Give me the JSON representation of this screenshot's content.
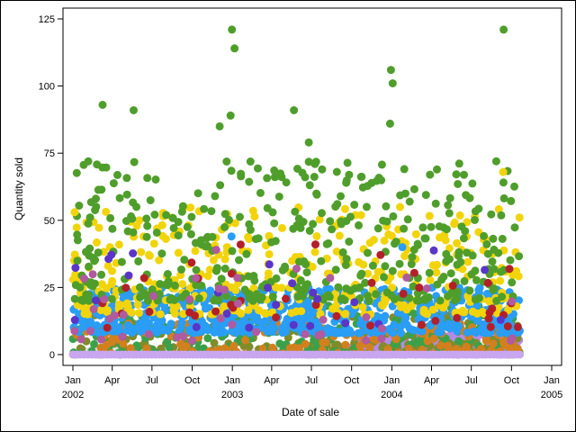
{
  "chart_data": {
    "type": "scatter",
    "title": "",
    "xlabel": "Date of sale",
    "ylabel": "Quantity sold",
    "xlim": [
      "2002-01-01",
      "2005-01-01"
    ],
    "ylim": [
      0,
      125
    ],
    "grid": false,
    "legend": "none",
    "x_ticks": [
      {
        "date": "2002-01-01",
        "label": "Jan",
        "year": "2002"
      },
      {
        "date": "2002-04-01",
        "label": "Apr",
        "year": ""
      },
      {
        "date": "2002-07-01",
        "label": "Jul",
        "year": ""
      },
      {
        "date": "2002-10-01",
        "label": "Oct",
        "year": ""
      },
      {
        "date": "2003-01-01",
        "label": "Jan",
        "year": "2003"
      },
      {
        "date": "2003-04-01",
        "label": "Apr",
        "year": ""
      },
      {
        "date": "2003-07-01",
        "label": "Jul",
        "year": ""
      },
      {
        "date": "2003-10-01",
        "label": "Oct",
        "year": ""
      },
      {
        "date": "2004-01-01",
        "label": "Jan",
        "year": "2004"
      },
      {
        "date": "2004-04-01",
        "label": "Apr",
        "year": ""
      },
      {
        "date": "2004-07-01",
        "label": "Jul",
        "year": ""
      },
      {
        "date": "2004-10-01",
        "label": "Oct",
        "year": ""
      },
      {
        "date": "2005-01-01",
        "label": "Jan",
        "year": "2005"
      }
    ],
    "y_ticks": [
      0,
      25,
      50,
      75,
      100,
      125
    ],
    "series": [
      {
        "color": "#e0e0e0",
        "y_range": [
          0,
          2
        ]
      },
      {
        "color": "#b58ae6",
        "y_range": [
          0,
          8
        ]
      },
      {
        "color": "#808b2a",
        "y_range": [
          0,
          15
        ]
      },
      {
        "color": "#3aa14a",
        "y_range": [
          0,
          20
        ]
      },
      {
        "color": "#d2801e",
        "y_range": [
          0,
          12
        ]
      },
      {
        "color": "#2a9df4",
        "y_range": [
          8,
          25
        ]
      },
      {
        "color": "#f2d40c",
        "y_range": [
          15,
          55
        ]
      },
      {
        "color": "#4f9e2b",
        "y_range": [
          20,
          72
        ]
      },
      {
        "color": "#b3202a",
        "y_range": [
          10,
          42
        ]
      },
      {
        "color": "#5a35c8",
        "y_range": [
          10,
          40
        ]
      },
      {
        "color": "#b05aa0",
        "y_range": [
          5,
          30
        ]
      }
    ],
    "outliers": [
      {
        "x": "2002-03-10",
        "y": 93,
        "color": "#4f9e2b"
      },
      {
        "x": "2002-05-20",
        "y": 91,
        "color": "#4f9e2b"
      },
      {
        "x": "2002-12-31",
        "y": 121,
        "color": "#4f9e2b"
      },
      {
        "x": "2003-01-06",
        "y": 114,
        "color": "#4f9e2b"
      },
      {
        "x": "2002-12-28",
        "y": 89,
        "color": "#4f9e2b"
      },
      {
        "x": "2002-12-03",
        "y": 85,
        "color": "#4f9e2b"
      },
      {
        "x": "2003-05-22",
        "y": 91,
        "color": "#4f9e2b"
      },
      {
        "x": "2003-06-25",
        "y": 79,
        "color": "#4f9e2b"
      },
      {
        "x": "2003-12-30",
        "y": 106,
        "color": "#4f9e2b"
      },
      {
        "x": "2004-01-03",
        "y": 101,
        "color": "#4f9e2b"
      },
      {
        "x": "2003-12-28",
        "y": 86,
        "color": "#4f9e2b"
      },
      {
        "x": "2004-09-13",
        "y": 121,
        "color": "#4f9e2b"
      },
      {
        "x": "2004-08-27",
        "y": 72,
        "color": "#4f9e2b"
      },
      {
        "x": "2002-01-05",
        "y": 53,
        "color": "#f2d40c"
      },
      {
        "x": "2004-09-12",
        "y": 68,
        "color": "#f2d40c"
      },
      {
        "x": "2002-12-30",
        "y": 44,
        "color": "#2a9df4"
      },
      {
        "x": "2004-01-25",
        "y": 40,
        "color": "#2a9df4"
      },
      {
        "x": "2003-01-20",
        "y": 41,
        "color": "#b3202a"
      },
      {
        "x": "2003-05-28",
        "y": 32,
        "color": "#b05aa0"
      },
      {
        "x": "2002-11-25",
        "y": 39,
        "color": "#b05aa0"
      }
    ]
  }
}
